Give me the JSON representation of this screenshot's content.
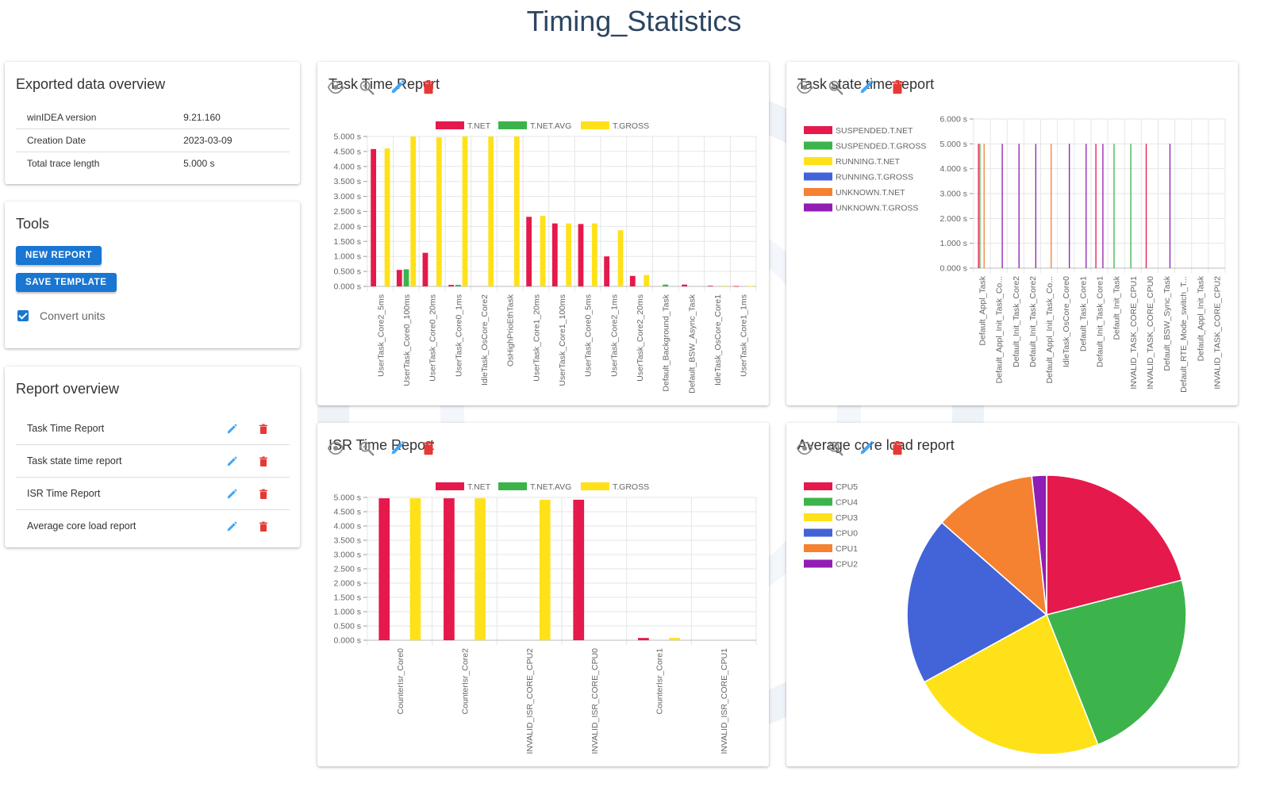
{
  "page_title": "Timing_Statistics",
  "colors": {
    "accent": "#1976d2",
    "delete": "#e53935",
    "red": "#e5194b",
    "green": "#3cb44b",
    "yellow": "#ffe119",
    "blue": "#4363d8",
    "orange": "#f58231",
    "purple": "#911eb4"
  },
  "overview": {
    "title": "Exported data overview",
    "rows": [
      {
        "label": "winIDEA version",
        "value": "9.21.160"
      },
      {
        "label": "Creation Date",
        "value": "2023-03-09"
      },
      {
        "label": "Total trace length",
        "value": "5.000 s"
      }
    ]
  },
  "tools": {
    "title": "Tools",
    "new_report": "NEW REPORT",
    "save_template": "SAVE TEMPLATE",
    "convert_units": "Convert units",
    "convert_units_checked": true
  },
  "report_overview": {
    "title": "Report overview",
    "items": [
      {
        "label": "Task Time Report"
      },
      {
        "label": "Task state time report"
      },
      {
        "label": "ISR Time Report"
      },
      {
        "label": "Average core load report"
      }
    ]
  },
  "card_icons": [
    "visibility-icon",
    "zoom-in-icon",
    "edit-icon",
    "delete-icon"
  ],
  "panels": {
    "task_time": {
      "title": "Task Time Report"
    },
    "task_state": {
      "title": "Task state time report"
    },
    "isr_time": {
      "title": "ISR Time Report"
    },
    "core_load": {
      "title": "Average core load report"
    }
  },
  "chart_data": [
    {
      "id": "task_time",
      "type": "bar",
      "title": "Task Time Report",
      "legend_position": "top",
      "ylim": [
        0,
        5
      ],
      "y_ticks": [
        "0.000 s",
        "0.500 s",
        "1.000 s",
        "1.500 s",
        "2.000 s",
        "2.500 s",
        "3.000 s",
        "3.500 s",
        "4.000 s",
        "4.500 s",
        "5.000 s"
      ],
      "grid": true,
      "categories": [
        "UserTask_Core2_5ms",
        "UserTask_Core0_100ms",
        "UserTask_Core0_20ms",
        "UserTask_Core0_1ms",
        "IdleTask_OsCore_Core2",
        "OsHighPrioEthTask",
        "UserTask_Core1_20ms",
        "UserTask_Core1_100ms",
        "UserTask_Core0_5ms",
        "UserTask_Core2_1ms",
        "UserTask_Core2_20ms",
        "Default_Background_Task",
        "Default_BSW_Async_Task",
        "IdleTask_OsCore_Core1",
        "UserTask_Core1_1ms"
      ],
      "series": [
        {
          "name": "T.NET",
          "color": "#e5194b",
          "values": [
            4.58,
            0.55,
            1.12,
            0.05,
            0,
            0,
            2.32,
            2.1,
            2.08,
            1.0,
            0.35,
            0,
            0.06,
            0.02,
            0.01
          ]
        },
        {
          "name": "T.NET.AVG",
          "color": "#3cb44b",
          "values": [
            0,
            0.57,
            0,
            0.05,
            0,
            0,
            0,
            0,
            0,
            0,
            0,
            0.06,
            0,
            0,
            0
          ]
        },
        {
          "name": "T.GROSS",
          "color": "#ffe119",
          "values": [
            4.6,
            5.0,
            4.97,
            5.0,
            5.0,
            5.0,
            2.35,
            2.1,
            2.1,
            1.87,
            0.38,
            0,
            0,
            0.02,
            0.01
          ]
        }
      ]
    },
    {
      "id": "task_state",
      "type": "bar",
      "title": "Task state time report",
      "legend_position": "left",
      "ylim": [
        0,
        6
      ],
      "y_ticks": [
        "0.000 s",
        "1.000 s",
        "2.000 s",
        "3.000 s",
        "4.000 s",
        "5.000 s",
        "6.000 s"
      ],
      "grid": true,
      "categories": [
        "Default_Appl_Task",
        "Default_Appl_Init_Task_Co...",
        "Default_Init_Task_Core2",
        "Default_Init_Task_Core2",
        "Default_Appl_Init_Task_Co...",
        "IdleTask_OsCore_Core0",
        "Default_Task_Core1",
        "Default_Init_Task_Core1",
        "Default_Init_Task",
        "INVALID_TASK_CORE_CPU1",
        "INVALID_TASK_CORE_CPU0",
        "Default_BSW_Sync_Task",
        "Default_RTE_Mode_switch_T...",
        "Default_Appl_Init_Task",
        "INVALID_TASK_CORE_CPU2"
      ],
      "series": [
        {
          "name": "SUSPENDED.T.NET",
          "color": "#e5194b",
          "values": [
            5,
            0,
            0,
            0,
            0,
            0,
            0,
            5,
            0,
            0,
            5,
            0,
            0,
            0,
            0
          ]
        },
        {
          "name": "SUSPENDED.T.GROSS",
          "color": "#3cb44b",
          "values": [
            5,
            0,
            0,
            0,
            0,
            0,
            0,
            0,
            5,
            5,
            0,
            0,
            0,
            0,
            0
          ]
        },
        {
          "name": "RUNNING.T.NET",
          "color": "#ffe119",
          "values": [
            0,
            0,
            0,
            0,
            0,
            0,
            0,
            0,
            0,
            0,
            0,
            0,
            0,
            0,
            0
          ]
        },
        {
          "name": "RUNNING.T.GROSS",
          "color": "#4363d8",
          "values": [
            0,
            0,
            0,
            0,
            0,
            0,
            0,
            0,
            0,
            0,
            0,
            0,
            0,
            0,
            0
          ]
        },
        {
          "name": "UNKNOWN.T.NET",
          "color": "#f58231",
          "values": [
            5,
            0,
            0,
            0,
            5,
            0,
            0,
            0,
            0,
            0,
            0,
            0,
            0,
            0,
            0
          ]
        },
        {
          "name": "UNKNOWN.T.GROSS",
          "color": "#911eb4",
          "values": [
            0,
            5,
            5,
            5,
            0,
            5,
            5,
            5,
            0,
            0,
            0,
            5,
            0,
            0,
            0
          ]
        }
      ]
    },
    {
      "id": "isr_time",
      "type": "bar",
      "title": "ISR Time Report",
      "legend_position": "top",
      "ylim": [
        0,
        5
      ],
      "y_ticks": [
        "0.000 s",
        "0.500 s",
        "1.000 s",
        "1.500 s",
        "2.000 s",
        "2.500 s",
        "3.000 s",
        "3.500 s",
        "4.000 s",
        "4.500 s",
        "5.000 s"
      ],
      "grid": true,
      "categories": [
        "CounterIsr_Core0",
        "CounterIsr_Core2",
        "INVALID_ISR_CORE_CPU2",
        "INVALID_ISR_CORE_CPU0",
        "CounterIsr_Core1",
        "INVALID_ISR_CORE_CPU1"
      ],
      "series": [
        {
          "name": "T.NET",
          "color": "#e5194b",
          "values": [
            4.97,
            4.97,
            0,
            4.92,
            0.08,
            0
          ]
        },
        {
          "name": "T.NET.AVG",
          "color": "#3cb44b",
          "values": [
            0,
            0,
            0,
            0,
            0,
            0
          ]
        },
        {
          "name": "T.GROSS",
          "color": "#ffe119",
          "values": [
            4.97,
            4.97,
            4.92,
            0,
            0.08,
            0
          ]
        }
      ]
    },
    {
      "id": "core_load",
      "type": "pie",
      "title": "Average core load report",
      "legend_position": "left",
      "slices": [
        {
          "name": "CPU5",
          "color": "#e5194b",
          "value": 21.0
        },
        {
          "name": "CPU4",
          "color": "#3cb44b",
          "value": 23.0
        },
        {
          "name": "CPU3",
          "color": "#ffe119",
          "value": 23.0
        },
        {
          "name": "CPU0",
          "color": "#4363d8",
          "value": 19.5
        },
        {
          "name": "CPU1",
          "color": "#f58231",
          "value": 11.8
        },
        {
          "name": "CPU2",
          "color": "#911eb4",
          "value": 1.7
        }
      ]
    }
  ]
}
